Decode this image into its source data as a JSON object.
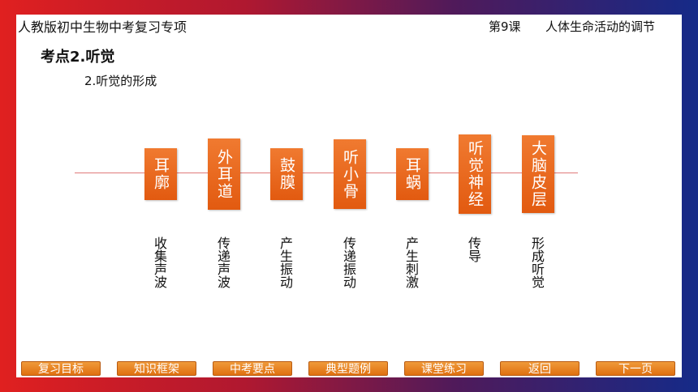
{
  "header": {
    "series_title": "人教版初中生物中考复习专项",
    "lesson_number": "第9课",
    "lesson_title": "人体生命活动的调节"
  },
  "main": {
    "kaodian": "考点2.听觉",
    "subtitle": "2.听觉的形成",
    "steps": [
      {
        "organ": "耳廓",
        "function": "收集声波"
      },
      {
        "organ": "外耳道",
        "function": "传递声波"
      },
      {
        "organ": "鼓膜",
        "function": "产生振动"
      },
      {
        "organ": "听小骨",
        "function": "传递振动"
      },
      {
        "organ": "耳蜗",
        "function": "产生刺激"
      },
      {
        "organ": "听觉神经",
        "function": "传导"
      },
      {
        "organ": "大脑皮层",
        "function": "形成听觉"
      }
    ]
  },
  "nav": {
    "buttons": [
      "复习目标",
      "知识框架",
      "中考要点",
      "典型题例",
      "课堂练习",
      "返回",
      "下一页"
    ]
  },
  "colors": {
    "accent": "#e8651a",
    "flow_line": "#e07a7a"
  }
}
